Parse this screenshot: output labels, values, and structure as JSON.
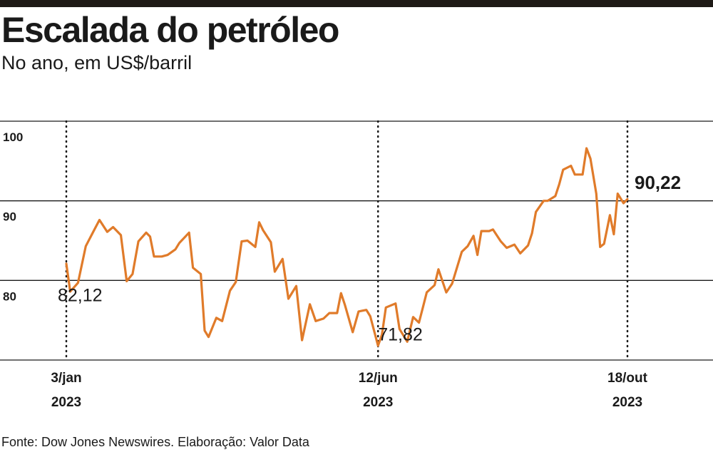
{
  "title": "Escalada do petróleo",
  "subtitle": "No ano, em US$/barril",
  "source": "Fonte: Dow Jones Newswires. Elaboração: Valor Data",
  "colors": {
    "line": "#e07b2a",
    "grid": "#1a1a1a",
    "top_rule": "#1e1a16"
  },
  "chart_data": {
    "type": "line",
    "title": "Escalada do petróleo",
    "subtitle": "No ano, em US$/barril",
    "xlabel": "",
    "ylabel": "",
    "ylim": [
      70,
      100
    ],
    "xlim": [
      "2023-01-03",
      "2023-10-18"
    ],
    "yticks": [
      {
        "value": 80,
        "label": "80"
      },
      {
        "value": 90,
        "label": "90"
      },
      {
        "value": 100,
        "label": "100"
      }
    ],
    "xticks": [
      {
        "date": "2023-01-03",
        "label": "3/jan",
        "year": "2023"
      },
      {
        "date": "2023-06-12",
        "label": "12/jun",
        "year": "2023"
      },
      {
        "date": "2023-10-18",
        "label": "18/out",
        "year": "2023"
      }
    ],
    "grid": "horizontal",
    "annotations": [
      {
        "date": "2023-01-03",
        "value": 82.12,
        "label": "82,12",
        "weight": "normal"
      },
      {
        "date": "2023-06-12",
        "value": 71.82,
        "label": "71,82",
        "weight": "normal"
      },
      {
        "date": "2023-10-18",
        "value": 90.22,
        "label": "90,22",
        "weight": "bold"
      }
    ],
    "series": [
      {
        "points": [
          [
            "2023-01-03",
            82.1
          ],
          [
            "2023-01-05",
            78.6
          ],
          [
            "2023-01-09",
            79.7
          ],
          [
            "2023-01-13",
            84.3
          ],
          [
            "2023-01-17",
            86.2
          ],
          [
            "2023-01-20",
            87.6
          ],
          [
            "2023-01-24",
            86.1
          ],
          [
            "2023-01-27",
            86.7
          ],
          [
            "2023-01-31",
            85.7
          ],
          [
            "2023-02-03",
            79.9
          ],
          [
            "2023-02-06",
            80.8
          ],
          [
            "2023-02-09",
            84.9
          ],
          [
            "2023-02-13",
            86.0
          ],
          [
            "2023-02-15",
            85.5
          ],
          [
            "2023-02-17",
            83.0
          ],
          [
            "2023-02-21",
            83.0
          ],
          [
            "2023-02-24",
            83.2
          ],
          [
            "2023-02-28",
            83.9
          ],
          [
            "2023-03-02",
            84.7
          ],
          [
            "2023-03-07",
            86.0
          ],
          [
            "2023-03-09",
            81.6
          ],
          [
            "2023-03-13",
            80.8
          ],
          [
            "2023-03-15",
            73.7
          ],
          [
            "2023-03-17",
            72.9
          ],
          [
            "2023-03-21",
            75.3
          ],
          [
            "2023-03-24",
            74.9
          ],
          [
            "2023-03-28",
            78.7
          ],
          [
            "2023-03-31",
            79.8
          ],
          [
            "2023-04-03",
            84.9
          ],
          [
            "2023-04-06",
            85.0
          ],
          [
            "2023-04-10",
            84.2
          ],
          [
            "2023-04-12",
            87.3
          ],
          [
            "2023-04-14",
            86.3
          ],
          [
            "2023-04-18",
            84.8
          ],
          [
            "2023-04-20",
            81.1
          ],
          [
            "2023-04-24",
            82.7
          ],
          [
            "2023-04-27",
            77.7
          ],
          [
            "2023-05-01",
            79.3
          ],
          [
            "2023-05-04",
            72.5
          ],
          [
            "2023-05-08",
            77.0
          ],
          [
            "2023-05-11",
            74.9
          ],
          [
            "2023-05-15",
            75.2
          ],
          [
            "2023-05-18",
            75.9
          ],
          [
            "2023-05-22",
            75.9
          ],
          [
            "2023-05-24",
            78.4
          ],
          [
            "2023-05-26",
            76.9
          ],
          [
            "2023-05-30",
            73.5
          ],
          [
            "2023-06-02",
            76.1
          ],
          [
            "2023-06-06",
            76.3
          ],
          [
            "2023-06-08",
            75.5
          ],
          [
            "2023-06-12",
            71.8
          ],
          [
            "2023-06-14",
            73.2
          ],
          [
            "2023-06-16",
            76.6
          ],
          [
            "2023-06-21",
            77.1
          ],
          [
            "2023-06-23",
            73.9
          ],
          [
            "2023-06-27",
            72.3
          ],
          [
            "2023-06-30",
            75.4
          ],
          [
            "2023-07-03",
            74.7
          ],
          [
            "2023-07-05",
            76.6
          ],
          [
            "2023-07-07",
            78.5
          ],
          [
            "2023-07-11",
            79.4
          ],
          [
            "2023-07-13",
            81.4
          ],
          [
            "2023-07-17",
            78.5
          ],
          [
            "2023-07-20",
            79.6
          ],
          [
            "2023-07-25",
            83.6
          ],
          [
            "2023-07-28",
            84.3
          ],
          [
            "2023-07-31",
            85.6
          ],
          [
            "2023-08-02",
            83.2
          ],
          [
            "2023-08-04",
            86.2
          ],
          [
            "2023-08-08",
            86.2
          ],
          [
            "2023-08-10",
            86.4
          ],
          [
            "2023-08-14",
            84.9
          ],
          [
            "2023-08-17",
            84.1
          ],
          [
            "2023-08-21",
            84.5
          ],
          [
            "2023-08-24",
            83.4
          ],
          [
            "2023-08-28",
            84.4
          ],
          [
            "2023-08-30",
            85.9
          ],
          [
            "2023-09-01",
            88.6
          ],
          [
            "2023-09-05",
            90.0
          ],
          [
            "2023-09-07",
            90.0
          ],
          [
            "2023-09-11",
            90.6
          ],
          [
            "2023-09-13",
            92.1
          ],
          [
            "2023-09-15",
            93.9
          ],
          [
            "2023-09-19",
            94.4
          ],
          [
            "2023-09-21",
            93.3
          ],
          [
            "2023-09-25",
            93.3
          ],
          [
            "2023-09-27",
            96.6
          ],
          [
            "2023-09-29",
            95.3
          ],
          [
            "2023-10-02",
            90.9
          ],
          [
            "2023-10-04",
            84.2
          ],
          [
            "2023-10-06",
            84.6
          ],
          [
            "2023-10-09",
            88.2
          ],
          [
            "2023-10-11",
            85.8
          ],
          [
            "2023-10-13",
            90.9
          ],
          [
            "2023-10-16",
            89.7
          ],
          [
            "2023-10-18",
            90.2
          ]
        ]
      }
    ]
  }
}
